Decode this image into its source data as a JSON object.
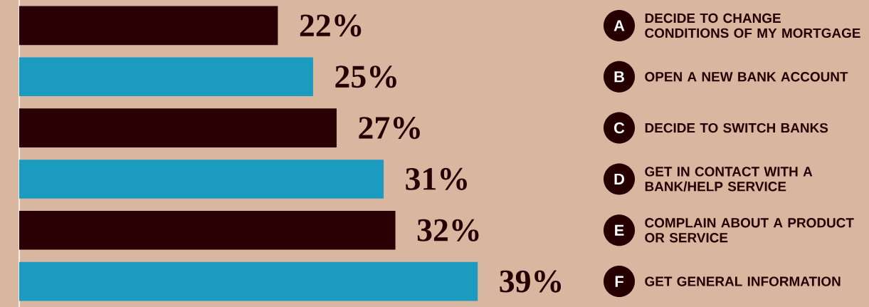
{
  "chart_data": {
    "type": "bar",
    "orientation": "horizontal",
    "categories": [
      "DECIDE TO CHANGE CONDITIONS OF MY MORTGAGE",
      "OPEN A NEW BANK ACCOUNT",
      "DECIDE TO SWITCH BANKS",
      "GET IN CONTACT WITH A BANK/HELP SERVICE",
      "COMPLAIN ABOUT A PRODUCT OR SERVICE",
      "GET GENERAL INFORMATION"
    ],
    "values": [
      22,
      25,
      27,
      31,
      32,
      39
    ],
    "colors": [
      "#2b0004",
      "#1a9bbf",
      "#2b0004",
      "#1a9bbf",
      "#2b0004",
      "#1a9bbf"
    ],
    "value_labels": [
      "22%",
      "25%",
      "27%",
      "31%",
      "32%",
      "39%"
    ],
    "annotations": [
      "A",
      "B",
      "C",
      "D",
      "E",
      "F"
    ]
  }
}
